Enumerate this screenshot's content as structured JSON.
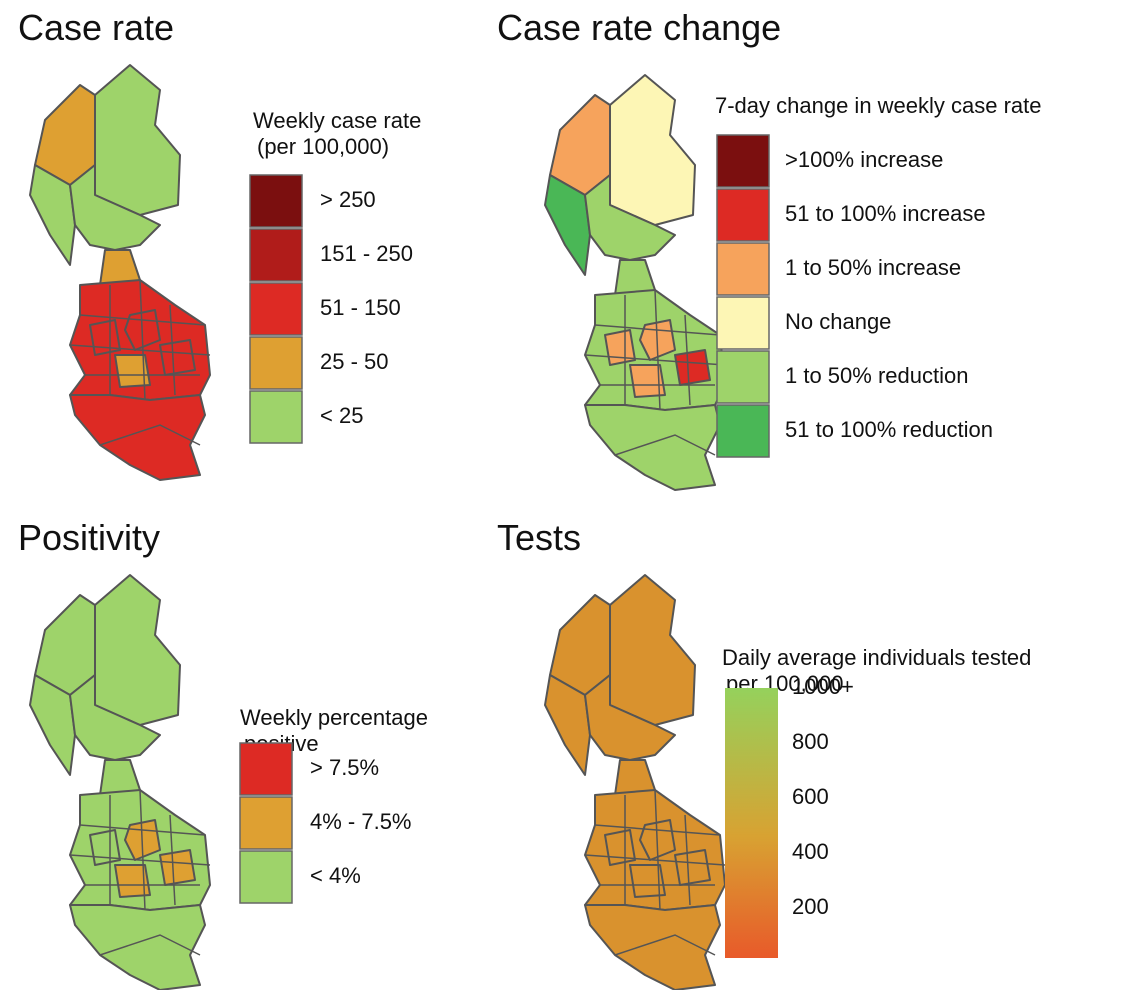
{
  "panels": [
    {
      "title": "Case rate",
      "legend": {
        "title": [
          "Weekly case rate",
          "(per 100,000)"
        ],
        "items": [
          {
            "label": "> 250",
            "color": "#7b0f0f"
          },
          {
            "label": "151 - 250",
            "color": "#b01c1a"
          },
          {
            "label": "51 - 150",
            "color": "#dd2a24"
          },
          {
            "label": "25 - 50",
            "color": "#dea032"
          },
          {
            "label": "< 25",
            "color": "#9ed36a"
          }
        ]
      }
    },
    {
      "title": "Case rate change",
      "legend": {
        "title": [
          "7-day change in weekly case rate"
        ],
        "items": [
          {
            "label": ">100% increase",
            "color": "#7b0f0f"
          },
          {
            "label": "51 to 100% increase",
            "color": "#dd2a24"
          },
          {
            "label": "1 to 50% increase",
            "color": "#f6a35c"
          },
          {
            "label": "No change",
            "color": "#fdf6b5"
          },
          {
            "label": "1 to 50% reduction",
            "color": "#9ed36a"
          },
          {
            "label": "51 to 100% reduction",
            "color": "#4ab756"
          }
        ]
      }
    },
    {
      "title": "Positivity",
      "legend": {
        "title": [
          "Weekly percentage",
          "positive"
        ],
        "items": [
          {
            "label": "> 7.5%",
            "color": "#dd2a24"
          },
          {
            "label": "4% - 7.5%",
            "color": "#dea032"
          },
          {
            "label": "< 4%",
            "color": "#9ed36a"
          }
        ]
      }
    },
    {
      "title": "Tests",
      "legend": {
        "title": [
          "Daily average individuals tested",
          "per 100,000"
        ],
        "scale": {
          "labels": [
            "1000+",
            "800",
            "600",
            "400",
            "200"
          ],
          "colors": [
            "#95d15c",
            "#d8a232",
            "#e85a2a"
          ]
        }
      }
    }
  ]
}
